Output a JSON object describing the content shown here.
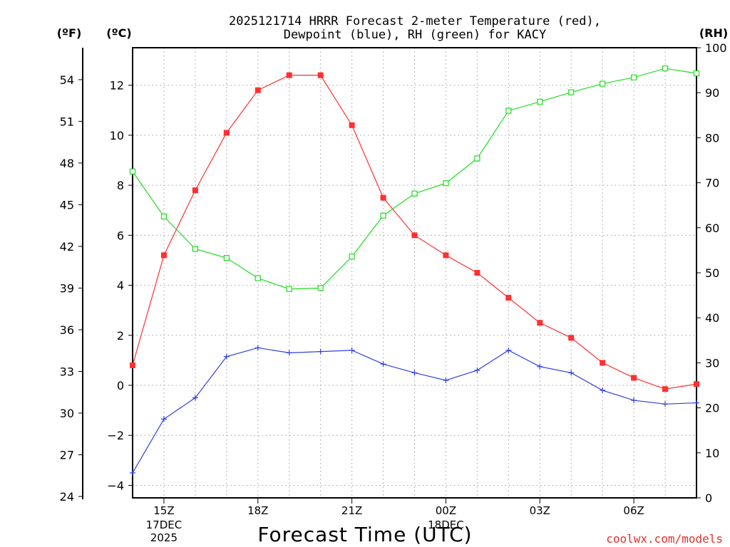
{
  "chart_data": {
    "type": "line",
    "title_line1": "2025121714 HRRR Forecast 2-meter Temperature (red),",
    "title_line2": "Dewpoint (blue), RH (green) for KACY",
    "xlabel": "Forecast Time (UTC)",
    "left_unit_f": "(ºF)",
    "left_unit_c": "(ºC)",
    "right_unit": "(RH)",
    "credit": "coolwx.com/models",
    "x_hours": [
      14,
      15,
      16,
      17,
      18,
      19,
      20,
      21,
      22,
      23,
      24,
      25,
      26,
      27,
      28,
      29,
      30,
      31,
      32
    ],
    "x_ticks": [
      {
        "hour": 15,
        "label": "15Z",
        "sub1": "17DEC",
        "sub2": "2025"
      },
      {
        "hour": 18,
        "label": "18Z",
        "sub1": "",
        "sub2": ""
      },
      {
        "hour": 21,
        "label": "21Z",
        "sub1": "",
        "sub2": ""
      },
      {
        "hour": 24,
        "label": "00Z",
        "sub1": "18DEC",
        "sub2": ""
      },
      {
        "hour": 27,
        "label": "03Z",
        "sub1": "",
        "sub2": ""
      },
      {
        "hour": 30,
        "label": "06Z",
        "sub1": "",
        "sub2": ""
      }
    ],
    "xlim": [
      14,
      32
    ],
    "ylim_c": [
      -4.5,
      13.5
    ],
    "ylim_rh": [
      0,
      100
    ],
    "y_ticks_c": [
      "-4",
      "-2",
      "0",
      "2",
      "4",
      "6",
      "8",
      "10",
      "12"
    ],
    "y_ticks_f": [
      "24",
      "27",
      "30",
      "33",
      "36",
      "39",
      "42",
      "45",
      "48",
      "51",
      "54"
    ],
    "y_ticks_rh": [
      "0",
      "10",
      "20",
      "30",
      "40",
      "50",
      "60",
      "70",
      "80",
      "90",
      "100"
    ],
    "series": [
      {
        "name": "Temperature",
        "unit": "C",
        "color": "#ff3030",
        "values": [
          0.8,
          5.2,
          7.8,
          10.1,
          11.8,
          12.4,
          12.4,
          10.4,
          7.5,
          6.0,
          5.2,
          4.5,
          3.5,
          2.5,
          1.9,
          0.9,
          0.3,
          -0.15,
          0.05
        ]
      },
      {
        "name": "Dewpoint",
        "unit": "C",
        "color": "#3040e0",
        "values": [
          -3.5,
          -1.35,
          -0.5,
          1.15,
          1.5,
          1.3,
          1.35,
          1.4,
          0.85,
          0.5,
          0.2,
          0.6,
          1.4,
          0.75,
          0.5,
          -0.2,
          -0.6,
          -0.75,
          -0.7
        ]
      },
      {
        "name": "RH",
        "unit": "%",
        "color": "#20dd20",
        "values": [
          72.5,
          62.5,
          55.3,
          53.3,
          48.8,
          46.4,
          46.6,
          53.6,
          62.7,
          67.6,
          69.9,
          75.4,
          86.0,
          88.0,
          90.1,
          92.0,
          93.4,
          95.4,
          94.3
        ]
      }
    ]
  }
}
